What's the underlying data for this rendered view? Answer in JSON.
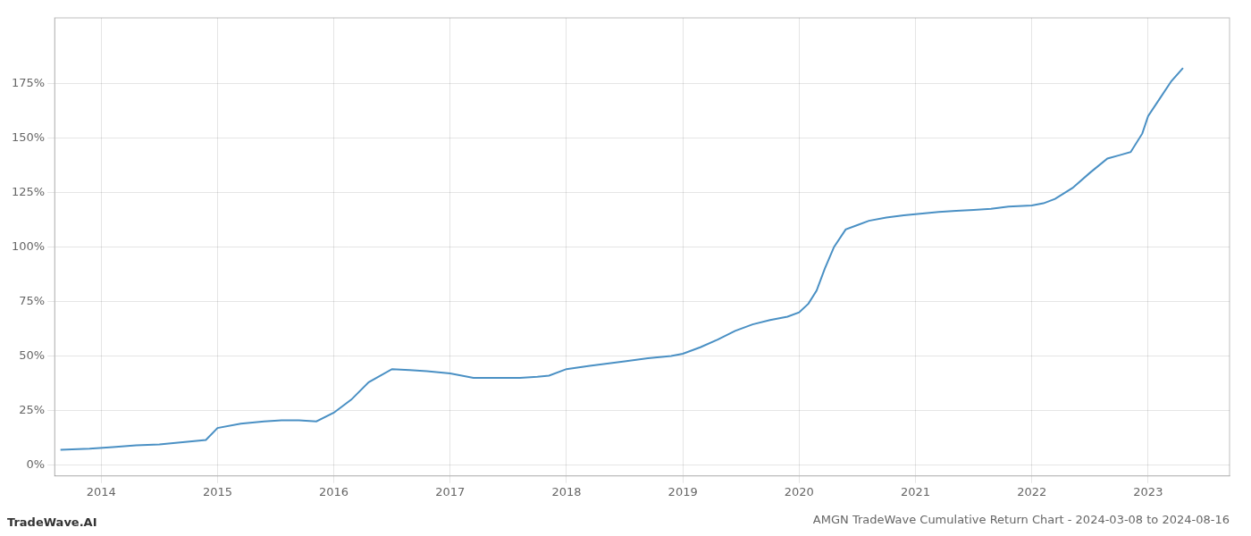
{
  "chart_data": {
    "type": "line",
    "title": "AMGN TradeWave Cumulative Return Chart - 2024-03-08 to 2024-08-16",
    "annotations": [
      "TradeWave.AI"
    ],
    "color": "#4a90c4",
    "grid": true,
    "x": [
      2013.65,
      2013.9,
      2014.1,
      2014.3,
      2014.5,
      2014.7,
      2014.9,
      2015.0,
      2015.2,
      2015.4,
      2015.55,
      2015.7,
      2015.85,
      2016.0,
      2016.15,
      2016.3,
      2016.5,
      2016.65,
      2016.8,
      2017.0,
      2017.2,
      2017.4,
      2017.6,
      2017.75,
      2017.85,
      2018.0,
      2018.2,
      2018.35,
      2018.5,
      2018.7,
      2018.9,
      2019.0,
      2019.15,
      2019.3,
      2019.45,
      2019.6,
      2019.75,
      2019.9,
      2020.0,
      2020.08,
      2020.15,
      2020.22,
      2020.3,
      2020.4,
      2020.5,
      2020.6,
      2020.75,
      2020.9,
      2021.0,
      2021.1,
      2021.2,
      2021.35,
      2021.5,
      2021.65,
      2021.8,
      2022.0,
      2022.1,
      2022.2,
      2022.35,
      2022.5,
      2022.65,
      2022.75,
      2022.85,
      2022.95,
      2023.0,
      2023.1,
      2023.2,
      2023.3
    ],
    "values": [
      0.07,
      0.075,
      0.082,
      0.09,
      0.095,
      0.105,
      0.115,
      0.17,
      0.19,
      0.2,
      0.205,
      0.205,
      0.2,
      0.24,
      0.3,
      0.38,
      0.44,
      0.435,
      0.43,
      0.42,
      0.4,
      0.4,
      0.4,
      0.405,
      0.41,
      0.44,
      0.455,
      0.465,
      0.475,
      0.49,
      0.5,
      0.51,
      0.54,
      0.575,
      0.615,
      0.645,
      0.665,
      0.68,
      0.7,
      0.74,
      0.8,
      0.9,
      1.0,
      1.08,
      1.1,
      1.12,
      1.135,
      1.145,
      1.15,
      1.155,
      1.16,
      1.165,
      1.17,
      1.175,
      1.185,
      1.19,
      1.2,
      1.22,
      1.27,
      1.34,
      1.405,
      1.42,
      1.435,
      1.52,
      1.6,
      1.68,
      1.76,
      1.82
    ],
    "xlim": [
      2013.6,
      2023.7
    ],
    "xticks": [
      2014,
      2015,
      2016,
      2017,
      2018,
      2019,
      2020,
      2021,
      2022,
      2023
    ],
    "ylim": [
      -0.05,
      2.05
    ],
    "yticks": [
      {
        "value": 0.0,
        "label": "0%"
      },
      {
        "value": 0.25,
        "label": "25%"
      },
      {
        "value": 0.5,
        "label": "50%"
      },
      {
        "value": 0.75,
        "label": "75%"
      },
      {
        "value": 1.0,
        "label": "100%"
      },
      {
        "value": 1.25,
        "label": "125%"
      },
      {
        "value": 1.5,
        "label": "150%"
      },
      {
        "value": 1.75,
        "label": "175%"
      }
    ]
  }
}
